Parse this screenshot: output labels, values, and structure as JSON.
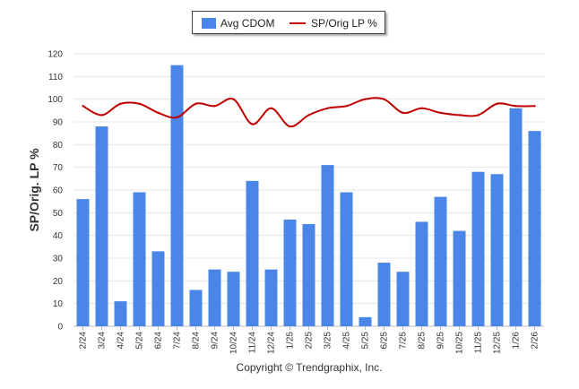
{
  "chart_data": {
    "type": "bar",
    "title": "",
    "xlabel": "",
    "ylabel": "SP/Orig. LP %",
    "ylim": [
      0,
      120
    ],
    "yticks": [
      0,
      10,
      20,
      30,
      40,
      50,
      60,
      70,
      80,
      90,
      100,
      110,
      120
    ],
    "categories": [
      "2/24",
      "3/24",
      "4/24",
      "5/24",
      "6/24",
      "7/24",
      "8/24",
      "9/24",
      "10/24",
      "11/24",
      "12/24",
      "1/25",
      "2/25",
      "3/25",
      "4/25",
      "5/25",
      "6/25",
      "7/25",
      "8/25",
      "9/25",
      "10/25",
      "11/25",
      "12/25",
      "1/26",
      "2/26"
    ],
    "series": [
      {
        "name": "Avg CDOM",
        "kind": "bar",
        "color": "#4a86e8",
        "values": [
          56,
          88,
          11,
          59,
          33,
          115,
          16,
          25,
          24,
          64,
          25,
          47,
          45,
          71,
          59,
          4,
          28,
          24,
          46,
          57,
          42,
          68,
          67,
          96,
          86
        ]
      },
      {
        "name": "SP/Orig LP %",
        "kind": "line",
        "color": "#c00000",
        "values": [
          97,
          93,
          98,
          98,
          94,
          92,
          98,
          97,
          100,
          89,
          96,
          88,
          93,
          96,
          97,
          100,
          100,
          94,
          96,
          94,
          93,
          93,
          98,
          97,
          97
        ]
      }
    ],
    "legend": {
      "position": "top-center",
      "items": [
        "Avg CDOM",
        "SP/Orig LP %"
      ]
    },
    "grid": true
  },
  "footer": {
    "copyright": "Copyright © Trendgraphix, Inc."
  }
}
